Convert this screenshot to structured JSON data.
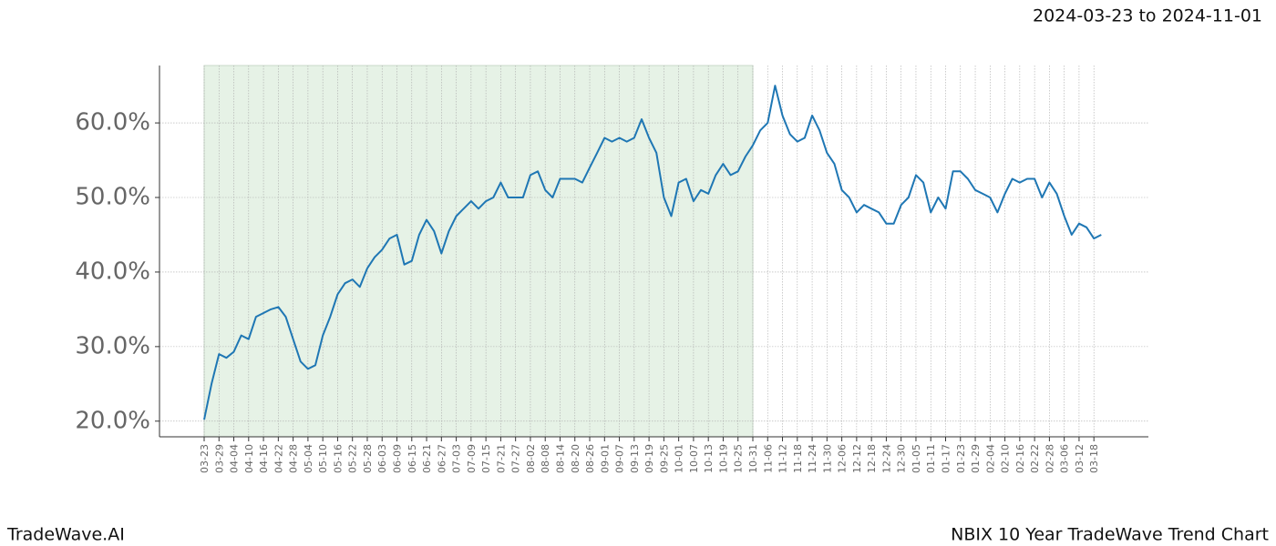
{
  "chart_data": {
    "type": "line",
    "title": "NBIX 10 Year TradeWave Trend Chart",
    "date_range": "2024-03-23 to 2024-11-01",
    "brand": "TradeWave.AI",
    "categories": [
      "03-23",
      null,
      "03-29",
      null,
      "04-04",
      null,
      "04-10",
      null,
      "04-16",
      null,
      "04-22",
      null,
      "04-28",
      null,
      "05-04",
      null,
      "05-10",
      null,
      "05-16",
      null,
      "05-22",
      null,
      "05-28",
      null,
      "06-03",
      null,
      "06-09",
      null,
      "06-15",
      null,
      "06-21",
      null,
      "06-27",
      null,
      "07-03",
      null,
      "07-09",
      null,
      "07-15",
      null,
      "07-21",
      null,
      "07-27",
      null,
      "08-02",
      null,
      "08-08",
      null,
      "08-14",
      null,
      "08-20",
      null,
      "08-26",
      null,
      "09-01",
      null,
      "09-07",
      null,
      "09-13",
      null,
      "09-19",
      null,
      "09-25",
      null,
      "10-01",
      null,
      "10-07",
      null,
      "10-13",
      null,
      "10-19",
      null,
      "10-25",
      null,
      "10-31",
      null,
      "11-06",
      null,
      "11-12",
      null,
      "11-18",
      null,
      "11-24",
      null,
      "11-30",
      null,
      "12-06",
      null,
      "12-12",
      null,
      "12-18",
      null,
      "12-24",
      null,
      "12-30",
      null,
      "01-05",
      null,
      "01-11",
      null,
      "01-17",
      null,
      "01-23",
      null,
      "01-29",
      null,
      "02-04",
      null,
      "02-10",
      null,
      "02-16",
      null,
      "02-22",
      null,
      "02-28",
      null,
      "03-06",
      null,
      "03-12",
      null,
      "03-18",
      null
    ],
    "series": [
      {
        "name": "NBIX",
        "color": "#1f77b4",
        "values": [
          20.2,
          25,
          29,
          28.5,
          29.3,
          31.5,
          31,
          34,
          34.5,
          35,
          35.3,
          34,
          31,
          28,
          27,
          27.5,
          31.5,
          34,
          37,
          38.5,
          39,
          38,
          40.5,
          42,
          43,
          44.5,
          45,
          41,
          41.5,
          45,
          47,
          45.5,
          42.5,
          45.5,
          47.5,
          48.5,
          49.5,
          48.5,
          49.5,
          50,
          52,
          50,
          50,
          50,
          53,
          53.5,
          51,
          50,
          52.5,
          52.5,
          52.5,
          52,
          54,
          56,
          58,
          57.5,
          58,
          57.5,
          58,
          60.5,
          58,
          56,
          50,
          47.5,
          52,
          52.5,
          49.5,
          51,
          50.5,
          53,
          54.5,
          53,
          53.5,
          55.5,
          57,
          59,
          60,
          65,
          61,
          58.5,
          57.5,
          58,
          61,
          59,
          56,
          54.5,
          51,
          50,
          48,
          49,
          48.5,
          48,
          46.5,
          46.5,
          49,
          50,
          53,
          52,
          48,
          50,
          48.5,
          53.5,
          53.5,
          52.5,
          51,
          50.5,
          50,
          48,
          50.5,
          52.5,
          52,
          52.5,
          52.5,
          50,
          52,
          50.5,
          47.5,
          45,
          46.5,
          46,
          44.5,
          45
        ]
      }
    ],
    "shade": {
      "from": "03-23",
      "to": "10-31",
      "color": "#e6f2e6"
    },
    "ylim": [
      17.9,
      67.7
    ],
    "yticks": [
      {
        "value": 20,
        "label": "20.0%"
      },
      {
        "value": 30,
        "label": "30.0%"
      },
      {
        "value": 40,
        "label": "40.0%"
      },
      {
        "value": 50,
        "label": "50.0%"
      },
      {
        "value": 60,
        "label": "60.0%"
      }
    ],
    "grid": true
  }
}
